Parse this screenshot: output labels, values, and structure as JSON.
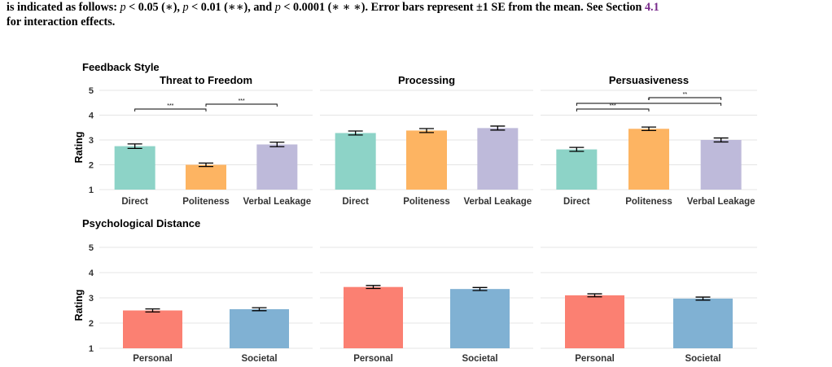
{
  "caption": {
    "line1_a": "is indicated as follows: ",
    "line1_p": "p",
    "line1_b": " < 0.05 (∗), ",
    "line1_c": " < 0.01 (∗∗), and ",
    "line1_d": " < 0.0001 (∗ ∗ ∗). Error bars represent ±1 SE from the mean. See Section ",
    "section_ref": "4.1",
    "line2": "for interaction effects."
  },
  "colors": {
    "direct": "#8dd3c7",
    "politeness": "#fdb462",
    "verbal_leakage": "#bebada",
    "personal": "#fb8072",
    "societal": "#80b1d3",
    "grid": "#e5e5e5",
    "text": "#333333"
  },
  "chart_data": [
    {
      "type": "bar",
      "group": "Feedback Style",
      "title": "Threat to Freedom",
      "ylabel": "Rating",
      "ylim": [
        1,
        5
      ],
      "yticks": [
        1,
        2,
        3,
        4,
        5
      ],
      "categories": [
        "Direct",
        "Politeness",
        "Verbal Leakage"
      ],
      "values": [
        2.75,
        2.0,
        2.82
      ],
      "se": [
        0.09,
        0.07,
        0.09
      ],
      "significance": [
        {
          "from": 0,
          "to": 1,
          "label": "***"
        },
        {
          "from": 1,
          "to": 2,
          "label": "***"
        }
      ]
    },
    {
      "type": "bar",
      "group": "Feedback Style",
      "title": "Processing",
      "ylim": [
        1,
        5
      ],
      "categories": [
        "Direct",
        "Politeness",
        "Verbal Leakage"
      ],
      "values": [
        3.28,
        3.38,
        3.48
      ],
      "se": [
        0.08,
        0.08,
        0.08
      ],
      "significance": []
    },
    {
      "type": "bar",
      "group": "Feedback Style",
      "title": "Persuasiveness",
      "ylim": [
        1,
        5
      ],
      "categories": [
        "Direct",
        "Politeness",
        "Verbal Leakage"
      ],
      "values": [
        2.62,
        3.45,
        3.0
      ],
      "se": [
        0.08,
        0.07,
        0.08
      ],
      "significance": [
        {
          "from": 0,
          "to": 1,
          "label": "***"
        },
        {
          "from": 0,
          "to": 2,
          "label": "*"
        },
        {
          "from": 1,
          "to": 2,
          "label": "**"
        }
      ]
    },
    {
      "type": "bar",
      "group": "Psychological Distance",
      "title": "",
      "ylabel": "Rating",
      "ylim": [
        1,
        5
      ],
      "yticks": [
        1,
        2,
        3,
        4,
        5
      ],
      "categories": [
        "Personal",
        "Societal"
      ],
      "values": [
        2.5,
        2.55
      ],
      "se": [
        0.06,
        0.06
      ],
      "significance": []
    },
    {
      "type": "bar",
      "group": "Psychological Distance",
      "title": "",
      "ylim": [
        1,
        5
      ],
      "categories": [
        "Personal",
        "Societal"
      ],
      "values": [
        3.43,
        3.35
      ],
      "se": [
        0.06,
        0.06
      ],
      "significance": []
    },
    {
      "type": "bar",
      "group": "Psychological Distance",
      "title": "",
      "ylim": [
        1,
        5
      ],
      "categories": [
        "Personal",
        "Societal"
      ],
      "values": [
        3.1,
        2.97
      ],
      "se": [
        0.06,
        0.06
      ],
      "significance": []
    }
  ]
}
